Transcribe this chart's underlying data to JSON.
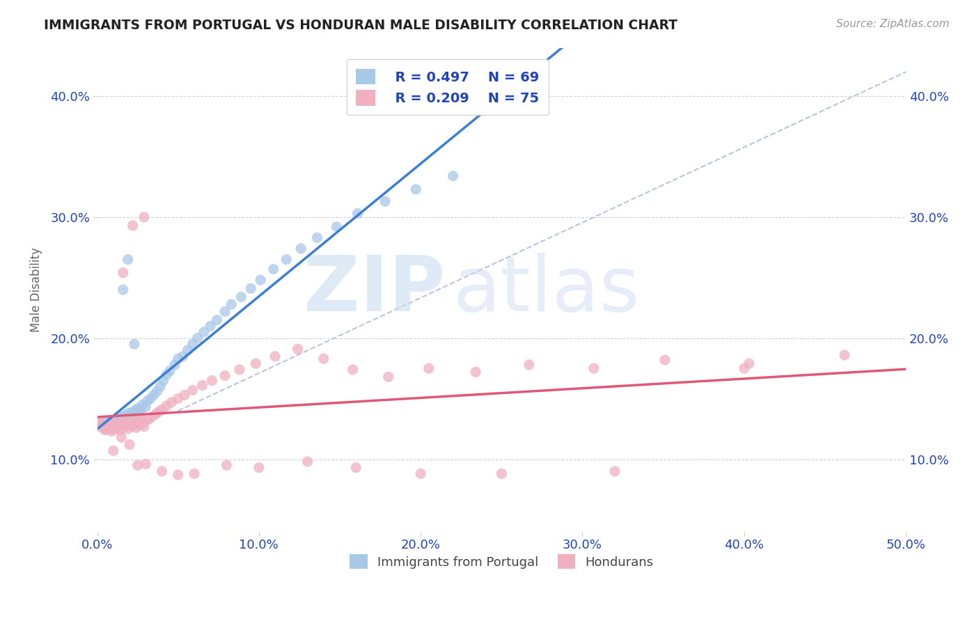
{
  "title": "IMMIGRANTS FROM PORTUGAL VS HONDURAN MALE DISABILITY CORRELATION CHART",
  "source": "Source: ZipAtlas.com",
  "ylabel": "Male Disability",
  "xlim": [
    0.0,
    0.5
  ],
  "ylim": [
    0.04,
    0.44
  ],
  "xtick_labels": [
    "0.0%",
    "10.0%",
    "20.0%",
    "30.0%",
    "40.0%",
    "50.0%"
  ],
  "xtick_vals": [
    0.0,
    0.1,
    0.2,
    0.3,
    0.4,
    0.5
  ],
  "ytick_labels": [
    "10.0%",
    "20.0%",
    "30.0%",
    "40.0%"
  ],
  "ytick_vals": [
    0.1,
    0.2,
    0.3,
    0.4
  ],
  "legend_r1": "R = 0.497",
  "legend_n1": "N = 69",
  "legend_r2": "R = 0.209",
  "legend_n2": "N = 75",
  "color_blue": "#a8c8e8",
  "color_pink": "#f0b0c0",
  "color_blue_line": "#3a7fd5",
  "color_pink_line": "#e05878",
  "color_legend_text": "#2244bb",
  "background_color": "#ffffff",
  "grid_color": "#cccccc",
  "blue_scatter_x": [
    0.003,
    0.004,
    0.005,
    0.006,
    0.006,
    0.007,
    0.008,
    0.008,
    0.009,
    0.01,
    0.01,
    0.011,
    0.012,
    0.012,
    0.013,
    0.013,
    0.014,
    0.015,
    0.015,
    0.016,
    0.017,
    0.018,
    0.018,
    0.019,
    0.02,
    0.021,
    0.021,
    0.022,
    0.023,
    0.024,
    0.025,
    0.026,
    0.027,
    0.028,
    0.03,
    0.031,
    0.033,
    0.035,
    0.037,
    0.039,
    0.041,
    0.043,
    0.045,
    0.048,
    0.05,
    0.053,
    0.056,
    0.059,
    0.062,
    0.066,
    0.07,
    0.074,
    0.079,
    0.083,
    0.089,
    0.095,
    0.101,
    0.109,
    0.117,
    0.126,
    0.136,
    0.148,
    0.161,
    0.178,
    0.197,
    0.22,
    0.016,
    0.019,
    0.023
  ],
  "blue_scatter_y": [
    0.13,
    0.128,
    0.125,
    0.127,
    0.131,
    0.129,
    0.126,
    0.132,
    0.128,
    0.13,
    0.127,
    0.131,
    0.129,
    0.132,
    0.128,
    0.13,
    0.133,
    0.135,
    0.128,
    0.132,
    0.136,
    0.133,
    0.129,
    0.138,
    0.134,
    0.138,
    0.131,
    0.136,
    0.14,
    0.138,
    0.142,
    0.137,
    0.141,
    0.145,
    0.143,
    0.148,
    0.15,
    0.153,
    0.156,
    0.16,
    0.165,
    0.17,
    0.173,
    0.178,
    0.183,
    0.185,
    0.19,
    0.195,
    0.2,
    0.205,
    0.21,
    0.215,
    0.222,
    0.228,
    0.234,
    0.241,
    0.248,
    0.257,
    0.265,
    0.274,
    0.283,
    0.292,
    0.303,
    0.313,
    0.323,
    0.334,
    0.24,
    0.265,
    0.195
  ],
  "pink_scatter_x": [
    0.002,
    0.003,
    0.004,
    0.005,
    0.006,
    0.007,
    0.008,
    0.009,
    0.01,
    0.011,
    0.012,
    0.013,
    0.014,
    0.015,
    0.016,
    0.017,
    0.018,
    0.019,
    0.02,
    0.021,
    0.022,
    0.023,
    0.024,
    0.025,
    0.026,
    0.027,
    0.028,
    0.029,
    0.03,
    0.032,
    0.034,
    0.036,
    0.038,
    0.04,
    0.043,
    0.046,
    0.05,
    0.054,
    0.059,
    0.065,
    0.071,
    0.079,
    0.088,
    0.098,
    0.11,
    0.124,
    0.14,
    0.158,
    0.18,
    0.205,
    0.234,
    0.267,
    0.307,
    0.351,
    0.403,
    0.462,
    0.01,
    0.015,
    0.02,
    0.025,
    0.03,
    0.04,
    0.05,
    0.06,
    0.08,
    0.1,
    0.13,
    0.16,
    0.2,
    0.25,
    0.32,
    0.4,
    0.016,
    0.022,
    0.029
  ],
  "pink_scatter_y": [
    0.13,
    0.126,
    0.128,
    0.124,
    0.127,
    0.125,
    0.129,
    0.123,
    0.128,
    0.125,
    0.13,
    0.127,
    0.124,
    0.129,
    0.126,
    0.131,
    0.128,
    0.125,
    0.13,
    0.127,
    0.132,
    0.129,
    0.126,
    0.131,
    0.128,
    0.133,
    0.13,
    0.127,
    0.132,
    0.133,
    0.135,
    0.137,
    0.139,
    0.141,
    0.144,
    0.147,
    0.15,
    0.153,
    0.157,
    0.161,
    0.165,
    0.169,
    0.174,
    0.179,
    0.185,
    0.191,
    0.183,
    0.174,
    0.168,
    0.175,
    0.172,
    0.178,
    0.175,
    0.182,
    0.179,
    0.186,
    0.107,
    0.118,
    0.112,
    0.095,
    0.096,
    0.09,
    0.087,
    0.088,
    0.095,
    0.093,
    0.098,
    0.093,
    0.088,
    0.088,
    0.09,
    0.175,
    0.254,
    0.293,
    0.3
  ]
}
